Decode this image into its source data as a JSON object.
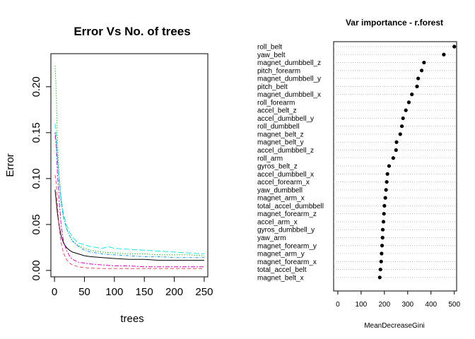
{
  "chart_data": [
    {
      "type": "line",
      "title": "Error Vs No. of trees",
      "xlabel": "trees",
      "ylabel": "Error",
      "xlim": [
        -6,
        256
      ],
      "ylim": [
        -0.007,
        0.236
      ],
      "x_ticks": [
        0,
        50,
        100,
        150,
        200,
        250
      ],
      "y_ticks": [
        0.0,
        0.05,
        0.1,
        0.15,
        0.2
      ],
      "x_tick_labels": [
        "0",
        "50",
        "100",
        "150",
        "200",
        "250"
      ],
      "y_tick_labels": [
        "0.00",
        "0.05",
        "0.10",
        "0.15",
        "0.20"
      ],
      "grid": false,
      "series": [
        {
          "color": "#000000",
          "dash": "solid",
          "x": [
            1,
            3,
            5,
            8,
            11,
            15,
            20,
            25,
            30,
            40,
            50,
            60,
            80,
            100,
            125,
            150,
            175,
            200,
            225,
            250
          ],
          "y": [
            0.088,
            0.075,
            0.062,
            0.048,
            0.038,
            0.03,
            0.025,
            0.022,
            0.02,
            0.018,
            0.016,
            0.015,
            0.014,
            0.013,
            0.012,
            0.012,
            0.011,
            0.011,
            0.011,
            0.011
          ]
        },
        {
          "color": "#df536b",
          "dash": "dashed",
          "x": [
            1,
            3,
            5,
            8,
            11,
            15,
            20,
            25,
            30,
            40,
            50,
            60,
            80,
            100,
            125,
            150,
            175,
            200,
            225,
            250
          ],
          "y": [
            0.104,
            0.095,
            0.07,
            0.046,
            0.03,
            0.019,
            0.012,
            0.008,
            0.006,
            0.004,
            0.003,
            0.0025,
            0.002,
            0.002,
            0.002,
            0.002,
            0.002,
            0.002,
            0.002,
            0.002
          ]
        },
        {
          "color": "#2fb62f",
          "dash": "dotted",
          "x": [
            1,
            3,
            5,
            8,
            11,
            15,
            20,
            25,
            30,
            40,
            50,
            60,
            80,
            100,
            125,
            150,
            175,
            200,
            225,
            250
          ],
          "y": [
            0.223,
            0.195,
            0.14,
            0.1,
            0.075,
            0.058,
            0.046,
            0.038,
            0.032,
            0.027,
            0.024,
            0.022,
            0.02,
            0.019,
            0.018,
            0.018,
            0.017,
            0.017,
            0.017,
            0.016
          ]
        },
        {
          "color": "#2297e6",
          "dash": "dotdash",
          "x": [
            1,
            3,
            5,
            8,
            11,
            15,
            20,
            25,
            30,
            40,
            50,
            60,
            80,
            100,
            125,
            150,
            175,
            200,
            225,
            250
          ],
          "y": [
            0.15,
            0.14,
            0.12,
            0.095,
            0.075,
            0.058,
            0.046,
            0.038,
            0.032,
            0.026,
            0.022,
            0.02,
            0.018,
            0.017,
            0.016,
            0.015,
            0.015,
            0.014,
            0.014,
            0.014
          ]
        },
        {
          "color": "#28e2e5",
          "dash": "longdash",
          "x": [
            1,
            3,
            5,
            8,
            11,
            15,
            20,
            25,
            30,
            40,
            50,
            60,
            80,
            90,
            100,
            125,
            150,
            175,
            200,
            225,
            250
          ],
          "y": [
            0.16,
            0.148,
            0.125,
            0.1,
            0.08,
            0.062,
            0.05,
            0.042,
            0.036,
            0.03,
            0.028,
            0.026,
            0.024,
            0.026,
            0.024,
            0.023,
            0.022,
            0.021,
            0.02,
            0.019,
            0.018
          ]
        },
        {
          "color": "#cd0bbc",
          "dash": "twodash",
          "x": [
            1,
            3,
            5,
            8,
            11,
            15,
            20,
            25,
            30,
            40,
            50,
            60,
            80,
            100,
            125,
            150,
            175,
            200,
            225,
            250
          ],
          "y": [
            0.15,
            0.135,
            0.105,
            0.075,
            0.05,
            0.032,
            0.022,
            0.016,
            0.012,
            0.009,
            0.008,
            0.007,
            0.006,
            0.005,
            0.005,
            0.004,
            0.004,
            0.004,
            0.004,
            0.004
          ]
        }
      ]
    },
    {
      "type": "scatter",
      "title": "Var importance - r.forest",
      "xlabel": "MeanDecreaseGini",
      "xlim": [
        -18,
        510
      ],
      "x_ticks": [
        0,
        100,
        200,
        300,
        400,
        500
      ],
      "x_tick_labels": [
        "0",
        "100",
        "200",
        "300",
        "400",
        "500"
      ],
      "grid": "dotted horizontal per variable",
      "variables": [
        "roll_belt",
        "yaw_belt",
        "magnet_dumbbell_z",
        "pitch_forearm",
        "magnet_dumbbell_y",
        "pitch_belt",
        "magnet_dumbbell_x",
        "roll_forearm",
        "accel_belt_z",
        "accel_dumbbell_y",
        "roll_dumbbell",
        "magnet_belt_z",
        "magnet_belt_y",
        "accel_dumbbell_z",
        "roll_arm",
        "gyros_belt_z",
        "accel_dumbbell_x",
        "accel_forearm_x",
        "yaw_dumbbell",
        "magnet_arm_x",
        "total_accel_dumbbell",
        "magnet_forearm_z",
        "accel_arm_x",
        "gyros_dumbbell_y",
        "yaw_arm",
        "magnet_forearm_y",
        "magnet_arm_y",
        "magnet_forearm_x",
        "total_accel_belt",
        "magnet_belt_x"
      ],
      "values": [
        500,
        455,
        370,
        360,
        345,
        340,
        318,
        305,
        292,
        280,
        275,
        268,
        252,
        250,
        238,
        220,
        213,
        210,
        207,
        204,
        200,
        198,
        196,
        193,
        192,
        190,
        188,
        186,
        183,
        180
      ]
    }
  ]
}
